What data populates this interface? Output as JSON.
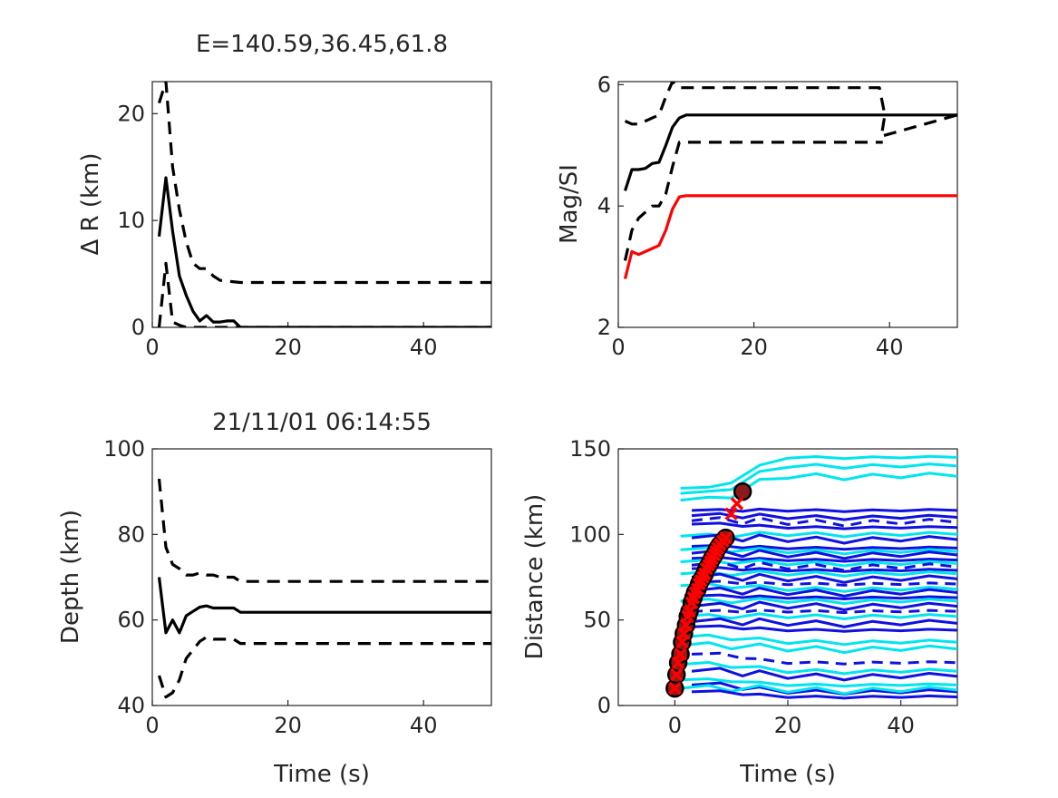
{
  "chart_data": [
    {
      "type": "line",
      "title": "E=140.59,36.45,61.8",
      "xlabel": "",
      "ylabel": "Δ R (km)",
      "xlim": [
        0,
        50
      ],
      "ylim": [
        0,
        23
      ],
      "xticks": [
        "0",
        "20",
        "40"
      ],
      "yticks": [
        "0",
        "10",
        "20"
      ],
      "grid": false,
      "series": [
        {
          "style": "solid",
          "color": "#000000",
          "x": [
            1,
            2,
            3,
            4,
            5,
            6,
            7,
            8,
            9,
            10,
            11,
            12,
            13,
            50
          ],
          "y": [
            8.5,
            14,
            9,
            4.8,
            3,
            1.5,
            0.6,
            1.1,
            0.5,
            0.5,
            0.6,
            0.6,
            0,
            0
          ]
        },
        {
          "style": "dashed",
          "color": "#000000",
          "x": [
            1,
            2,
            3,
            4,
            5,
            6,
            7,
            8,
            9,
            10,
            13,
            50
          ],
          "y": [
            21,
            23,
            15,
            11,
            8,
            6,
            5.5,
            5.5,
            4.8,
            4.4,
            4.2,
            4.2
          ]
        },
        {
          "style": "dashed",
          "color": "#000000",
          "x": [
            1,
            2,
            3,
            4,
            5,
            6,
            50
          ],
          "y": [
            0,
            6,
            0.5,
            0.2,
            0,
            0,
            0
          ]
        }
      ]
    },
    {
      "type": "line",
      "title": "",
      "xlabel": "",
      "ylabel": "Mag/SI",
      "xlim": [
        0,
        50
      ],
      "ylim": [
        2,
        6.05
      ],
      "xticks": [
        "0",
        "20",
        "40"
      ],
      "yticks": [
        "2",
        "4",
        "6"
      ],
      "grid": false,
      "series": [
        {
          "style": "solid",
          "color": "#000000",
          "x": [
            1,
            2,
            3,
            4,
            5,
            6,
            7,
            8,
            9,
            10,
            50
          ],
          "y": [
            4.25,
            4.6,
            4.6,
            4.62,
            4.7,
            4.72,
            5.0,
            5.3,
            5.45,
            5.5,
            5.5
          ]
        },
        {
          "style": "dashed",
          "color": "#000000",
          "x": [
            1,
            2,
            3,
            4,
            5,
            6,
            7,
            8,
            9,
            10,
            38.5,
            39.3,
            38.8,
            50
          ],
          "y": [
            5.4,
            5.35,
            5.35,
            5.4,
            5.45,
            5.5,
            5.8,
            6.05,
            5.95,
            5.95,
            5.95,
            5.5,
            5.15,
            5.5
          ]
        },
        {
          "style": "dashed",
          "color": "#000000",
          "x": [
            1,
            2,
            3,
            4,
            5,
            6,
            7,
            8,
            9,
            10,
            39
          ],
          "y": [
            3.1,
            3.6,
            3.8,
            3.9,
            4.0,
            4.0,
            4.2,
            4.65,
            5.05,
            5.05,
            5.05
          ]
        },
        {
          "style": "solid",
          "color": "#ff0000",
          "x": [
            1,
            2,
            3,
            4,
            5,
            6,
            7,
            8,
            9,
            10,
            50
          ],
          "y": [
            2.8,
            3.25,
            3.2,
            3.25,
            3.3,
            3.35,
            3.6,
            3.95,
            4.15,
            4.17,
            4.17
          ]
        }
      ]
    },
    {
      "type": "line",
      "title": "21/11/01 06:14:55",
      "xlabel": "Time (s)",
      "ylabel": "Depth (km)",
      "xlim": [
        0,
        50
      ],
      "ylim": [
        40,
        100
      ],
      "xticks": [
        "0",
        "20",
        "40"
      ],
      "yticks": [
        "40",
        "60",
        "80",
        "100"
      ],
      "grid": false,
      "series": [
        {
          "style": "solid",
          "color": "#000000",
          "x": [
            1,
            2,
            3,
            4,
            5,
            6,
            7,
            8,
            9,
            10,
            11,
            12,
            13,
            50
          ],
          "y": [
            70,
            57,
            60,
            57,
            61,
            62,
            63,
            63.3,
            62.8,
            62.8,
            62.8,
            62.8,
            61.8,
            61.8
          ]
        },
        {
          "style": "dashed",
          "color": "#000000",
          "x": [
            1,
            2,
            3,
            4,
            5,
            6,
            7,
            8,
            9,
            10,
            12,
            13,
            50
          ],
          "y": [
            93,
            77,
            73,
            72,
            70.5,
            70.5,
            71,
            70.5,
            70.5,
            70,
            70,
            69,
            69
          ]
        },
        {
          "style": "dashed",
          "color": "#000000",
          "x": [
            1,
            2,
            3,
            4,
            5,
            6,
            7,
            8,
            9,
            10,
            12,
            13,
            50
          ],
          "y": [
            47,
            42,
            43,
            46,
            51,
            53,
            55,
            56,
            55.5,
            55.5,
            55.5,
            54.5,
            54.5
          ]
        }
      ]
    },
    {
      "type": "line",
      "title": "",
      "xlabel": "Time (s)",
      "ylabel": "Distance (km)",
      "xlim": [
        -10,
        50
      ],
      "ylim": [
        0,
        150
      ],
      "xticks": [
        "0",
        "20",
        "40"
      ],
      "yticks": [
        "0",
        "50",
        "100",
        "150"
      ],
      "grid": false,
      "arrival_points": {
        "t": [
          0,
          0.3,
          0.6,
          1,
          1.3,
          1.6,
          2,
          2.3,
          2.6,
          3,
          3.3,
          3.6,
          4,
          4.3,
          4.6,
          5,
          5.3,
          5.6,
          6,
          6.3,
          6.6,
          7,
          7.3,
          7.6,
          8,
          8.5,
          9,
          12
        ],
        "dist": [
          10,
          18,
          25,
          30,
          37,
          42,
          47,
          52,
          55,
          60,
          63,
          66,
          68,
          71,
          73,
          75,
          77,
          80,
          82,
          84,
          86,
          88,
          90,
          92,
          94,
          96,
          98,
          125
        ],
        "marker": "circle",
        "color": "#000000"
      },
      "estimated_points": {
        "t": [
          0,
          0.3,
          0.6,
          1,
          1.3,
          1.6,
          2,
          2.3,
          2.6,
          3,
          3.3,
          3.6,
          4,
          4.3,
          4.6,
          5,
          5.3,
          5.6,
          6,
          6.3,
          6.6,
          7,
          7.3,
          7.6,
          8,
          8.5,
          9,
          10,
          11
        ],
        "dist": [
          10,
          18,
          25,
          30,
          37,
          42,
          47,
          52,
          55,
          60,
          63,
          66,
          68,
          71,
          73,
          75,
          77,
          80,
          82,
          84,
          86,
          88,
          90,
          92,
          94,
          96,
          98,
          112,
          118
        ],
        "marker": "x",
        "color": "#ff0000"
      },
      "traces": [
        {
          "color": "#00e5ee",
          "style": "solid",
          "t0": 1,
          "start": 127,
          "end": 145
        },
        {
          "color": "#00e5ee",
          "style": "solid",
          "t0": 1,
          "start": 124,
          "end": 140
        },
        {
          "color": "#00e5ee",
          "style": "solid",
          "t0": 1,
          "start": 120,
          "end": 134
        },
        {
          "color": "#1010e0",
          "style": "solid",
          "t0": 3,
          "start": 114,
          "end": 114
        },
        {
          "color": "#1010e0",
          "style": "solid",
          "t0": 3,
          "start": 111,
          "end": 110
        },
        {
          "color": "#1010e0",
          "style": "dashed",
          "t0": 3,
          "start": 108,
          "end": 107
        },
        {
          "color": "#1010e0",
          "style": "solid",
          "t0": 3,
          "start": 106,
          "end": 104
        },
        {
          "color": "#00e5ee",
          "style": "solid",
          "t0": 1,
          "start": 99,
          "end": 100
        },
        {
          "color": "#1010e0",
          "style": "solid",
          "t0": 3,
          "start": 98,
          "end": 97
        },
        {
          "color": "#1010e0",
          "style": "solid",
          "t0": 3,
          "start": 93,
          "end": 92
        },
        {
          "color": "#00e5ee",
          "style": "solid",
          "t0": 1,
          "start": 91,
          "end": 90
        },
        {
          "color": "#1010e0",
          "style": "solid",
          "t0": 3,
          "start": 89,
          "end": 88
        },
        {
          "color": "#1010e0",
          "style": "solid",
          "t0": 3,
          "start": 86,
          "end": 85
        },
        {
          "color": "#00e5ee",
          "style": "solid",
          "t0": 1,
          "start": 84,
          "end": 83
        },
        {
          "color": "#1010e0",
          "style": "dashed",
          "t0": 3,
          "start": 82,
          "end": 81
        },
        {
          "color": "#1010e0",
          "style": "solid",
          "t0": 3,
          "start": 80,
          "end": 79
        },
        {
          "color": "#00e5ee",
          "style": "solid",
          "t0": 1,
          "start": 77,
          "end": 77
        },
        {
          "color": "#1010e0",
          "style": "solid",
          "t0": 3,
          "start": 75,
          "end": 74
        },
        {
          "color": "#1010e0",
          "style": "dashed",
          "t0": 3,
          "start": 72,
          "end": 71
        },
        {
          "color": "#00e5ee",
          "style": "solid",
          "t0": 1,
          "start": 70,
          "end": 68
        },
        {
          "color": "#1010e0",
          "style": "solid",
          "t0": 3,
          "start": 67,
          "end": 66
        },
        {
          "color": "#1010e0",
          "style": "solid",
          "t0": 3,
          "start": 64,
          "end": 63
        },
        {
          "color": "#00e5ee",
          "style": "solid",
          "t0": 1,
          "start": 61,
          "end": 61
        },
        {
          "color": "#1010e0",
          "style": "solid",
          "t0": 3,
          "start": 58,
          "end": 58
        },
        {
          "color": "#1010e0",
          "style": "dashed",
          "t0": 3,
          "start": 55,
          "end": 55
        },
        {
          "color": "#00e5ee",
          "style": "solid",
          "t0": 1,
          "start": 52,
          "end": 52
        },
        {
          "color": "#1010e0",
          "style": "solid",
          "t0": 3,
          "start": 49,
          "end": 48
        },
        {
          "color": "#1010e0",
          "style": "solid",
          "t0": 3,
          "start": 46,
          "end": 44
        },
        {
          "color": "#00e5ee",
          "style": "solid",
          "t0": 1,
          "start": 40,
          "end": 37
        },
        {
          "color": "#00e5ee",
          "style": "solid",
          "t0": 1,
          "start": 35,
          "end": 33
        },
        {
          "color": "#1010e0",
          "style": "dashed",
          "t0": 3,
          "start": 30,
          "end": 25
        },
        {
          "color": "#00e5ee",
          "style": "solid",
          "t0": 1,
          "start": 24,
          "end": 20
        },
        {
          "color": "#1010e0",
          "style": "solid",
          "t0": 3,
          "start": 20,
          "end": 17
        },
        {
          "color": "#00e5ee",
          "style": "solid",
          "t0": 1,
          "start": 15,
          "end": 12
        },
        {
          "color": "#1010e0",
          "style": "solid",
          "t0": 3,
          "start": 12,
          "end": 8
        },
        {
          "color": "#00e5ee",
          "style": "solid",
          "t0": 1,
          "start": 10,
          "end": 9
        },
        {
          "color": "#1010e0",
          "style": "solid",
          "t0": 3,
          "start": 8,
          "end": 5
        }
      ]
    }
  ]
}
